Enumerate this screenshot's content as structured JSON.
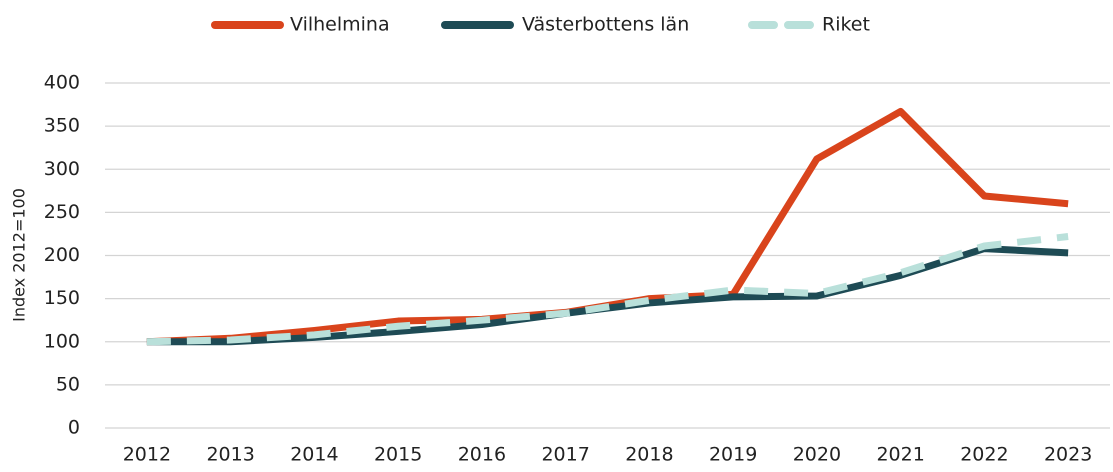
{
  "chart_data": {
    "type": "line",
    "y_label": "Index 2012=100",
    "categories": [
      "2012",
      "2013",
      "2014",
      "2015",
      "2016",
      "2017",
      "2018",
      "2019",
      "2020",
      "2021",
      "2022",
      "2023"
    ],
    "series": [
      {
        "name": "Vilhelmina",
        "color": "#d9441c",
        "style": "solid",
        "values": [
          100,
          104,
          113,
          124,
          126,
          134,
          150,
          155,
          312,
          367,
          269,
          260
        ]
      },
      {
        "name": "Västerbottens län",
        "color": "#1e4b55",
        "style": "solid",
        "values": [
          100,
          100,
          105,
          112,
          120,
          133,
          145,
          152,
          153,
          177,
          208,
          203
        ]
      },
      {
        "name": "Riket",
        "color": "#b9e0da",
        "style": "dashed",
        "values": [
          100,
          102,
          108,
          118,
          125,
          133,
          148,
          160,
          156,
          180,
          211,
          222
        ]
      }
    ],
    "ylim": [
      0,
      400
    ],
    "yticks": [
      0,
      50,
      100,
      150,
      200,
      250,
      300,
      350,
      400
    ],
    "grid": true,
    "legend": "top"
  }
}
